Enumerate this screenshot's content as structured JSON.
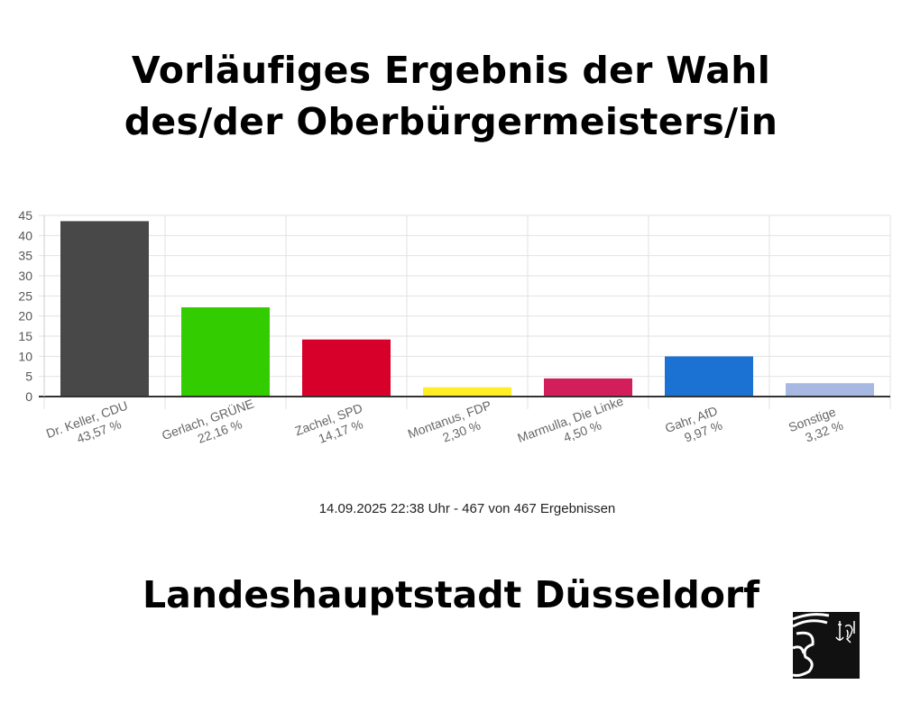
{
  "header": {
    "title_line1": "Vorläufiges Ergebnis der Wahl",
    "title_line2": "des/der Oberbürgermeisters/in"
  },
  "footer": {
    "city": "Landeshauptstadt Düsseldorf",
    "logo": "Düsseldorf city logo with lion and anchor coat of arms"
  },
  "chart_data": {
    "type": "bar",
    "categories": [
      "Dr. Keller, CDU",
      "Gerlach, GRÜNE",
      "Zachel, SPD",
      "Montanus, FDP",
      "Marmulla, Die Linke",
      "Gahr, AfD",
      "Sonstige"
    ],
    "value_labels": [
      "43,57 %",
      "22,16 %",
      "14,17 %",
      "2,30 %",
      "4,50 %",
      "9,97 %",
      "3,32 %"
    ],
    "values": [
      43.57,
      22.16,
      14.17,
      2.3,
      4.5,
      9.97,
      3.32
    ],
    "colors": [
      "#484848",
      "#33cc00",
      "#d7002a",
      "#ffed27",
      "#d21e5a",
      "#1b72d2",
      "#a7b9e3"
    ],
    "ylim": [
      0,
      45
    ],
    "yticks": [
      "0",
      "5",
      "10",
      "15",
      "20",
      "25",
      "30",
      "35",
      "40",
      "45"
    ],
    "grid": true,
    "note": "14.09.2025 22:38 Uhr - 467 von 467 Ergebnissen"
  }
}
